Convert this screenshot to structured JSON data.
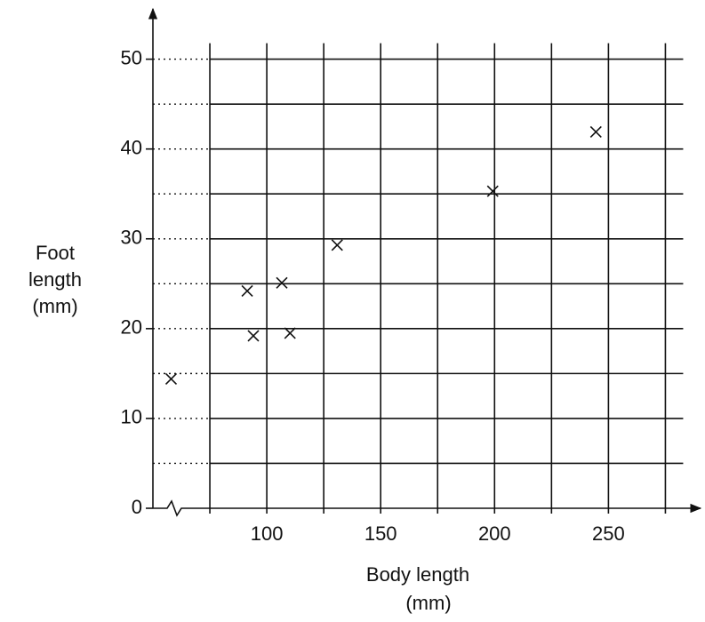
{
  "chart_data": {
    "type": "scatter",
    "xlabel": [
      "Body length",
      "(mm)"
    ],
    "ylabel": [
      "Foot",
      "length",
      "(mm)"
    ],
    "x": [
      58,
      91.4,
      94.1,
      106.6,
      110.2,
      130.9,
      199.2,
      244.5
    ],
    "values": [
      14.4,
      24.2,
      19.2,
      25.1,
      19.5,
      29.3,
      35.3,
      41.9
    ],
    "xlim": [
      50,
      292
    ],
    "ylim": [
      0,
      55.6
    ],
    "xticks": [
      100,
      150,
      200,
      250
    ],
    "minor_xticks": [
      75,
      125,
      175,
      225,
      275
    ],
    "yticks": [
      0,
      10,
      20,
      30,
      40,
      50
    ],
    "minor_yticks": [
      5,
      15,
      25,
      35,
      45
    ],
    "grid": true,
    "color": "#111111"
  }
}
